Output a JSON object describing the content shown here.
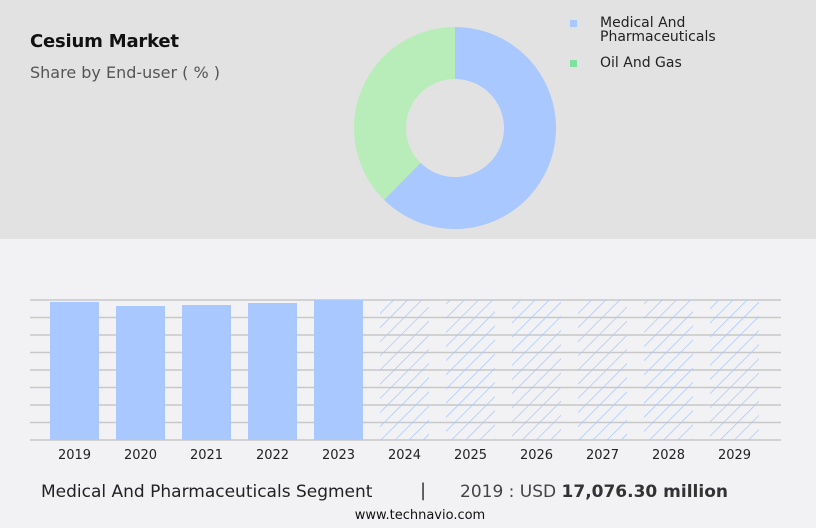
{
  "header": {
    "title": "Cesium Market",
    "subtitle": "Share by End-user ( % )"
  },
  "legend": {
    "items": [
      {
        "label": "Medical And\nPharmaceuticals",
        "color": "#a8c8ff"
      },
      {
        "label": "Oil And Gas",
        "color": "#7ee39a"
      }
    ]
  },
  "footer": {
    "segment_label": "Medical And Pharmaceuticals Segment",
    "separator": "|",
    "value_prefix": "2019 : USD ",
    "value_bold": "17,076.30 million"
  },
  "source": "www.technavio.com",
  "colors": {
    "top_background": "#e2e2e2",
    "bottom_background": "#f2f2f4",
    "medical": "#a8c8ff",
    "oil_gas_donut": "#b8edb9",
    "oil_gas_legend": "#7ee39a",
    "gridline": "#c8c8c8"
  },
  "chart_data": [
    {
      "type": "pie",
      "subtype": "donut",
      "title": "Cesium Market",
      "subtitle": "Share by End-user ( % )",
      "categories": [
        "Medical And Pharmaceuticals",
        "Oil And Gas"
      ],
      "values": [
        62.4,
        37.6
      ],
      "colors": [
        "#a8c8ff",
        "#b8edb9"
      ],
      "legend_position": "right"
    },
    {
      "type": "bar",
      "title": "Medical And Pharmaceuticals Segment",
      "categories": [
        "2019",
        "2020",
        "2021",
        "2022",
        "2023",
        "2024",
        "2025",
        "2026",
        "2027",
        "2028",
        "2029"
      ],
      "values": [
        17076.3,
        16581,
        16705,
        16953,
        17324,
        null,
        null,
        null,
        null,
        null,
        null
      ],
      "forecast": [
        false,
        false,
        false,
        false,
        false,
        true,
        true,
        true,
        true,
        true,
        true
      ],
      "forecast_display": "hatched full-height placeholder bars",
      "xlabel": "",
      "ylabel": "USD million",
      "ylim": [
        0,
        17324
      ],
      "grid": true,
      "gridline_count": 9,
      "annotation": "2019 : USD 17,076.30 million"
    }
  ]
}
